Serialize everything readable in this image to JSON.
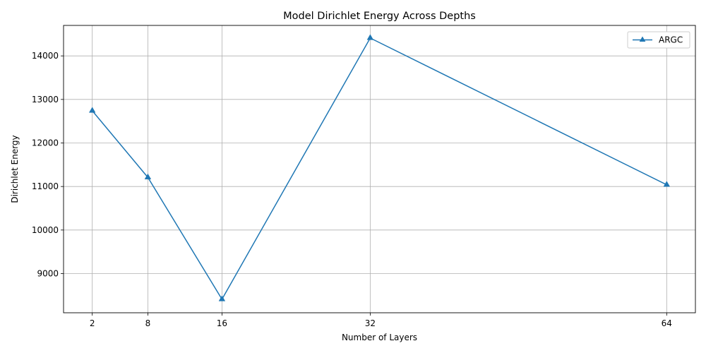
{
  "chart_data": {
    "type": "line",
    "title": "Model Dirichlet Energy Across Depths",
    "xlabel": "Number of Layers",
    "ylabel": "Dirichlet Energy",
    "x": [
      2,
      8,
      16,
      32,
      64
    ],
    "xticks": [
      "2",
      "8",
      "16",
      "32",
      "64"
    ],
    "yticks": [
      "9000",
      "10000",
      "11000",
      "12000",
      "13000",
      "14000"
    ],
    "ytick_values": [
      9000,
      10000,
      11000,
      12000,
      13000,
      14000
    ],
    "xlim": [
      -1.1,
      67.1
    ],
    "ylim": [
      8100,
      14700
    ],
    "grid": true,
    "legend_position": "top-right",
    "series": [
      {
        "name": "ARGC",
        "values": [
          12740,
          11210,
          8410,
          14410,
          11040
        ],
        "color": "#1f77b4",
        "marker": "triangle-up"
      }
    ]
  }
}
